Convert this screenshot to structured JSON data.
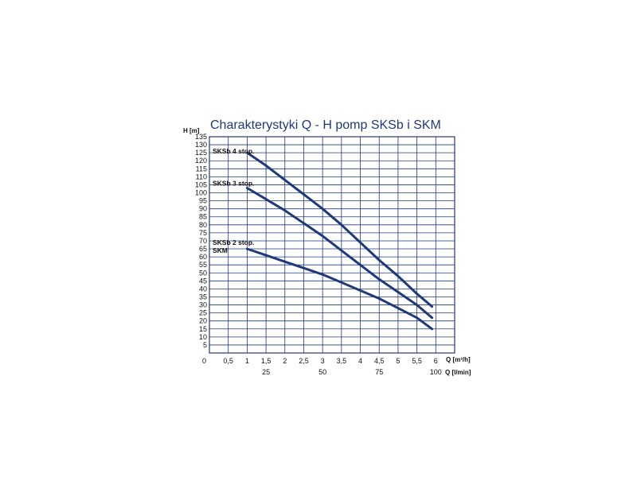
{
  "chart_data": {
    "type": "line",
    "title": "Charakterystyki Q - H pomp SKSb i SKM",
    "ylabel": "H [m]",
    "xlabel": "Q [m³/h]",
    "x2label": "Q [l/min]",
    "xlim": [
      0,
      6.5
    ],
    "ylim": [
      0,
      135
    ],
    "grid": true,
    "y_ticks": [
      "5",
      "10",
      "15",
      "20",
      "25",
      "30",
      "35",
      "40",
      "45",
      "50",
      "55",
      "60",
      "65",
      "70",
      "75",
      "80",
      "85",
      "90",
      "95",
      "100",
      "105",
      "110",
      "115",
      "120",
      "125",
      "130",
      "135"
    ],
    "y_tick_values": [
      5,
      10,
      15,
      20,
      25,
      30,
      35,
      40,
      45,
      50,
      55,
      60,
      65,
      70,
      75,
      80,
      85,
      90,
      95,
      100,
      105,
      110,
      115,
      120,
      125,
      130,
      135
    ],
    "x_ticks": [
      "0",
      "0,5",
      "1",
      "1,5",
      "2",
      "2,5",
      "3",
      "3,5",
      "4",
      "4,5",
      "5",
      "5,5",
      "6"
    ],
    "x_tick_values": [
      0,
      0.5,
      1,
      1.5,
      2,
      2.5,
      3,
      3.5,
      4,
      4.5,
      5,
      5.5,
      6
    ],
    "x2_ticks": [
      "25",
      "50",
      "75",
      "100"
    ],
    "x2_tick_values": [
      1.5,
      3,
      4.5,
      6
    ],
    "line_color": "#1f3a78",
    "grid_color": "#1f3a78",
    "series": [
      {
        "name": "SKSb 4 stop.",
        "label_at": [
          -1.0,
          126
        ],
        "x": [
          1.0,
          1.5,
          2.0,
          2.5,
          3.0,
          3.5,
          4.0,
          4.5,
          5.0,
          5.5,
          5.9
        ],
        "y": [
          125,
          117,
          108,
          99,
          90,
          80,
          69,
          58,
          48,
          37,
          29
        ]
      },
      {
        "name": "SKSb 3 stop.",
        "label_at": [
          -1.0,
          106
        ],
        "x": [
          1.0,
          1.5,
          2.0,
          2.5,
          3.0,
          3.5,
          4.0,
          4.5,
          5.0,
          5.5,
          5.9
        ],
        "y": [
          103,
          96,
          89,
          81,
          73,
          64,
          55,
          46,
          38,
          30,
          22
        ]
      },
      {
        "name": "SKSb 2 stop.",
        "label_at": [
          -1.0,
          69
        ],
        "x": [
          1.0,
          1.5,
          2.0,
          2.5,
          3.0,
          3.5,
          4.0,
          4.5,
          5.0,
          5.5,
          5.9
        ],
        "y": [
          65,
          61,
          57,
          53,
          49,
          44,
          39,
          34,
          28,
          22,
          15
        ]
      }
    ],
    "extra_labels": [
      {
        "text": "SKM",
        "at": [
          -1.0,
          64
        ]
      }
    ]
  }
}
